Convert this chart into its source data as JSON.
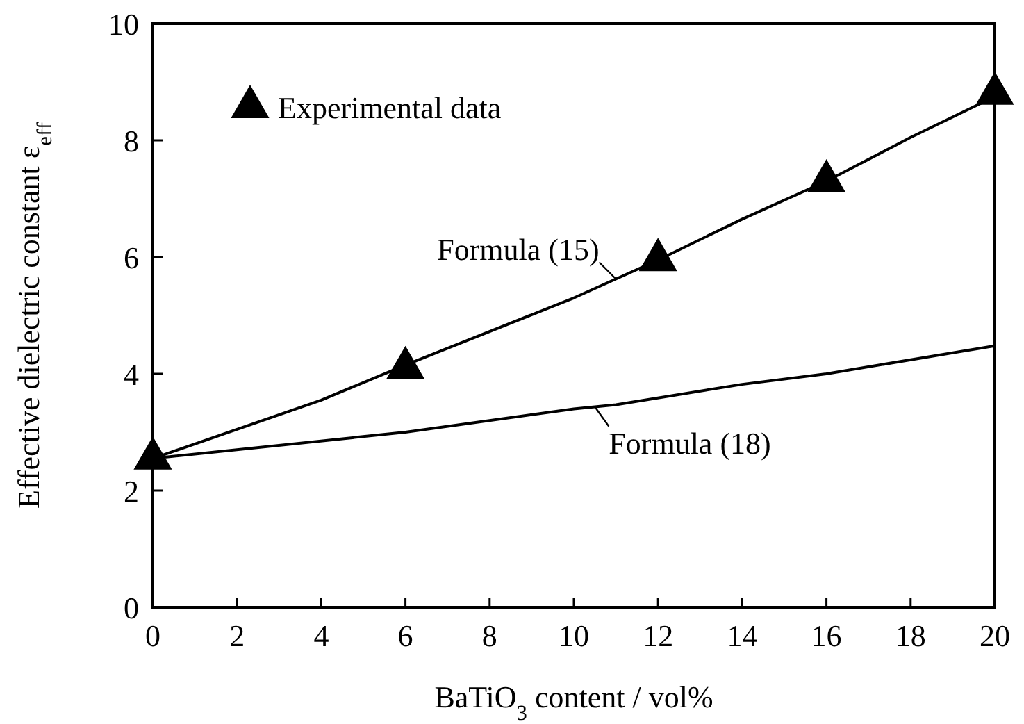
{
  "chart_data": {
    "type": "line",
    "xlabel": "BaTiO$_{3}$ content / vol%",
    "ylabel": "Effective dielectric constant ε$_{eff}$",
    "xlim": [
      0,
      20
    ],
    "ylim": [
      0,
      10
    ],
    "xticks": [
      0,
      2,
      4,
      6,
      8,
      10,
      12,
      14,
      16,
      18,
      20
    ],
    "yticks": [
      0,
      2,
      4,
      6,
      8,
      10
    ],
    "grid": false,
    "legend": "top left",
    "series": [
      {
        "name": "Experimental data",
        "type": "scatter",
        "marker": "triangle",
        "color": "#000000",
        "x": [
          0,
          6,
          12,
          16,
          20
        ],
        "values": [
          2.55,
          4.1,
          5.95,
          7.3,
          8.8
        ]
      },
      {
        "name": "Formula (15)",
        "marker": "none",
        "line_style": "solid",
        "color": "#000000",
        "x": [
          0,
          4,
          6,
          10,
          12,
          14,
          16,
          18,
          20
        ],
        "values": [
          2.55,
          3.55,
          4.15,
          5.3,
          5.95,
          6.65,
          7.3,
          8.05,
          8.75
        ]
      },
      {
        "name": "Formula (18)",
        "marker": "none",
        "line_style": "solid",
        "color": "#000000",
        "x": [
          0,
          6,
          10,
          11,
          14,
          16,
          20
        ],
        "values": [
          2.55,
          3.0,
          3.4,
          3.47,
          3.82,
          4.0,
          4.48
        ]
      }
    ]
  }
}
